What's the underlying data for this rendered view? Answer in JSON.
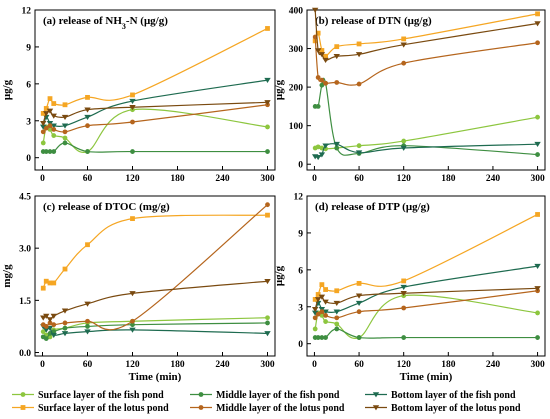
{
  "legend": {
    "entries": [
      {
        "label": "Surface layer of the fish pond",
        "color": "#8dc63f",
        "marker": "circle"
      },
      {
        "label": "Middle layer of  the fish pond",
        "color": "#3e8e41",
        "marker": "circle"
      },
      {
        "label": "Bottom layer of  the fish pond",
        "color": "#1e6b50",
        "marker": "triangle-down"
      },
      {
        "label": "Surface layer of the lotus pond",
        "color": "#f5a623",
        "marker": "square"
      },
      {
        "label": "Middle layer of the lotus pond",
        "color": "#b5651d",
        "marker": "circle"
      },
      {
        "label": "Bottom layer of the lotus pond",
        "color": "#7a4a10",
        "marker": "triangle-down"
      }
    ]
  },
  "chart_data": [
    {
      "type": "line",
      "title_parts": [
        "(a) release of NH",
        "3",
        "-N (μg/g)"
      ],
      "xlabel": "",
      "ylabel": "μg/g",
      "xlim": [
        -10,
        310
      ],
      "ylim": [
        -1,
        12
      ],
      "xticks": [
        "0",
        "60",
        "120",
        "180",
        "240",
        "300"
      ],
      "yticks": [
        "0",
        "3",
        "6",
        "9",
        "12"
      ],
      "x": [
        1,
        5,
        10,
        15,
        30,
        60,
        120,
        300
      ],
      "series": [
        {
          "name": "Surface layer of the fish pond",
          "values": [
            1.2,
            2.5,
            2.3,
            1.8,
            1.6,
            0.5,
            3.9,
            2.5
          ]
        },
        {
          "name": "Middle layer of  the fish pond",
          "values": [
            0.5,
            0.5,
            0.5,
            0.5,
            1.2,
            0.5,
            0.5,
            0.5
          ]
        },
        {
          "name": "Bottom layer of  the fish pond",
          "values": [
            2.5,
            3.3,
            2.8,
            2.6,
            2.6,
            3.3,
            4.6,
            6.3
          ]
        },
        {
          "name": "Surface layer of the lotus pond",
          "values": [
            3.6,
            4.0,
            4.8,
            4.4,
            4.3,
            4.9,
            5.1,
            10.5
          ]
        },
        {
          "name": "Middle layer of the lotus pond",
          "values": [
            2.1,
            2.4,
            2.6,
            2.3,
            2.1,
            2.6,
            2.9,
            4.3
          ]
        },
        {
          "name": "Bottom layer of the lotus pond",
          "values": [
            2.8,
            3.6,
            3.8,
            3.4,
            3.3,
            3.9,
            4.1,
            4.5
          ]
        }
      ]
    },
    {
      "type": "line",
      "title_parts": [
        "(b) release of DTN  (μg/g)"
      ],
      "xlabel": "",
      "ylabel": "μg/g",
      "xlim": [
        -10,
        310
      ],
      "ylim": [
        -15,
        400
      ],
      "xticks": [
        "0",
        "60",
        "120",
        "180",
        "240",
        "300"
      ],
      "yticks": [
        "0",
        "100",
        "200",
        "300",
        "400"
      ],
      "x": [
        1,
        5,
        10,
        15,
        30,
        60,
        120,
        300
      ],
      "series": [
        {
          "name": "Surface layer of the fish pond",
          "values": [
            42,
            45,
            42,
            40,
            42,
            48,
            60,
            122
          ]
        },
        {
          "name": "Middle layer of  the fish pond",
          "values": [
            150,
            150,
            205,
            210,
            42,
            28,
            48,
            25
          ]
        },
        {
          "name": "Bottom layer of  the fish pond",
          "values": [
            20,
            18,
            25,
            48,
            52,
            30,
            42,
            52
          ]
        },
        {
          "name": "Surface layer of the lotus pond",
          "values": [
            320,
            340,
            295,
            280,
            305,
            312,
            325,
            390
          ]
        },
        {
          "name": "Middle layer of the lotus pond",
          "values": [
            330,
            225,
            218,
            210,
            212,
            208,
            262,
            315
          ]
        },
        {
          "name": "Bottom layer of the lotus pond",
          "values": [
            400,
            295,
            285,
            270,
            280,
            285,
            310,
            365
          ]
        }
      ]
    },
    {
      "type": "line",
      "title_parts": [
        "(c) release of DTOC  (mg/g)"
      ],
      "xlabel": "Time  (min)",
      "ylabel": "mg/g",
      "xlim": [
        -10,
        310
      ],
      "ylim": [
        -0.1,
        4.5
      ],
      "xticks": [
        "0",
        "60",
        "120",
        "180",
        "240",
        "300"
      ],
      "yticks": [
        "0.0",
        "1.5",
        "3.0",
        "4.5"
      ],
      "x": [
        1,
        5,
        10,
        15,
        30,
        60,
        120,
        300
      ],
      "series": [
        {
          "name": "Surface layer of the fish pond",
          "values": [
            0.6,
            0.5,
            0.45,
            0.65,
            0.7,
            0.85,
            0.9,
            1.0
          ]
        },
        {
          "name": "Middle layer of  the fish pond",
          "values": [
            0.45,
            0.4,
            0.55,
            0.6,
            0.7,
            0.75,
            0.8,
            0.85
          ]
        },
        {
          "name": "Bottom layer of  the fish pond",
          "values": [
            0.75,
            0.65,
            0.7,
            0.5,
            0.55,
            0.6,
            0.65,
            0.55
          ]
        },
        {
          "name": "Surface layer of the lotus pond",
          "values": [
            1.85,
            2.05,
            2.0,
            2.0,
            2.4,
            3.1,
            3.85,
            3.95
          ]
        },
        {
          "name": "Middle layer of the lotus pond",
          "values": [
            0.8,
            0.75,
            0.85,
            0.8,
            0.85,
            0.9,
            0.9,
            4.25
          ]
        },
        {
          "name": "Bottom layer of the lotus pond",
          "values": [
            1.0,
            1.05,
            0.95,
            1.05,
            1.2,
            1.4,
            1.7,
            2.05
          ]
        }
      ]
    },
    {
      "type": "line",
      "title_parts": [
        "(d) release of DTP (μg/g)"
      ],
      "xlabel": "Time  (min)",
      "ylabel": "μg/g",
      "xlim": [
        -10,
        310
      ],
      "ylim": [
        -1,
        12
      ],
      "xticks": [
        "0",
        "60",
        "120",
        "180",
        "240",
        "300"
      ],
      "yticks": [
        "0",
        "3",
        "6",
        "9",
        "12"
      ],
      "x": [
        1,
        5,
        10,
        15,
        30,
        60,
        120,
        300
      ],
      "series": [
        {
          "name": "Surface layer of the fish pond",
          "values": [
            1.2,
            2.5,
            2.3,
            1.8,
            1.6,
            0.5,
            3.9,
            2.5
          ]
        },
        {
          "name": "Middle layer of  the fish pond",
          "values": [
            0.5,
            0.5,
            0.5,
            0.5,
            1.2,
            0.5,
            0.5,
            0.5
          ]
        },
        {
          "name": "Bottom layer of  the fish pond",
          "values": [
            2.5,
            3.3,
            2.8,
            2.6,
            2.6,
            3.3,
            4.6,
            6.3
          ]
        },
        {
          "name": "Surface layer of the lotus pond",
          "values": [
            3.6,
            4.0,
            4.8,
            4.4,
            4.3,
            4.9,
            5.1,
            10.5
          ]
        },
        {
          "name": "Middle layer of the lotus pond",
          "values": [
            2.1,
            2.4,
            2.6,
            2.3,
            2.1,
            2.6,
            2.9,
            4.3
          ]
        },
        {
          "name": "Bottom layer of the lotus pond",
          "values": [
            2.8,
            3.6,
            3.8,
            3.4,
            3.3,
            3.9,
            4.1,
            4.5
          ]
        }
      ]
    }
  ]
}
